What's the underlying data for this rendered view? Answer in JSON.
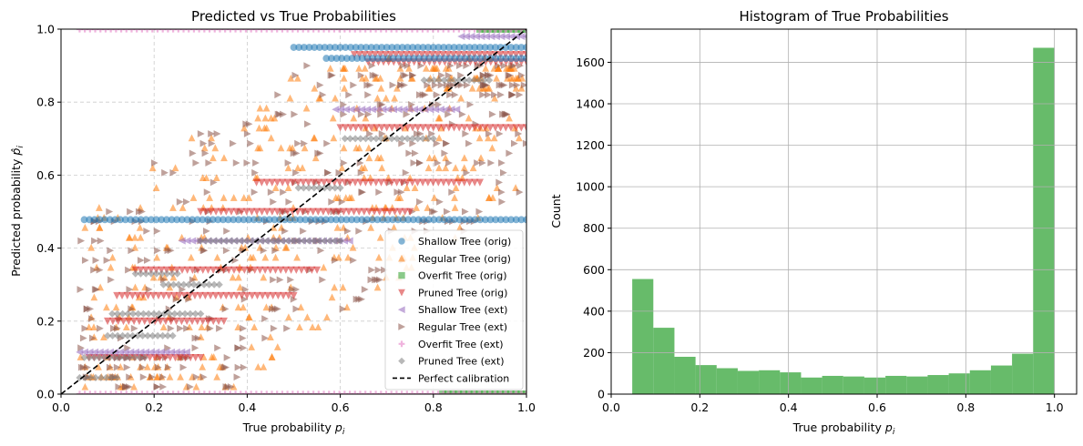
{
  "chart_data": [
    {
      "type": "scatter",
      "title": "Predicted vs True Probabilities",
      "xlabel": "True probability ",
      "xlabel_sub": "p",
      "xlabel_subscript": "i",
      "ylabel": "Predicted probability ",
      "ylabel_sym": "p̂",
      "ylabel_subscript": "i",
      "xlim": [
        0,
        1
      ],
      "ylim": [
        0,
        1
      ],
      "xticks": [
        "0.0",
        "0.2",
        "0.4",
        "0.6",
        "0.8",
        "1.0"
      ],
      "yticks": [
        "0.0",
        "0.2",
        "0.4",
        "0.6",
        "0.8",
        "1.0"
      ],
      "grid": true,
      "legend_position": "lower-right",
      "series": [
        {
          "name": "Shallow Tree (orig)",
          "marker": "circle",
          "color": "#1f77b4",
          "bands": [
            {
              "y": 0.478,
              "x0": 0.05,
              "x1": 1.0
            },
            {
              "y": 0.95,
              "x0": 0.5,
              "x1": 1.0
            },
            {
              "y": 0.92,
              "x0": 0.57,
              "x1": 1.0
            }
          ]
        },
        {
          "name": "Regular Tree (orig)",
          "marker": "triangle-up",
          "color": "#ff7f0e",
          "spread": {
            "x0": 0.04,
            "x1": 1.0,
            "ymin": 0.02,
            "ymax": 0.92
          }
        },
        {
          "name": "Overfit Tree (orig)",
          "marker": "square",
          "color": "#2ca02c",
          "bands": [
            {
              "y": 0.0,
              "x0": 0.82,
              "x1": 1.0
            },
            {
              "y": 1.0,
              "x0": 0.9,
              "x1": 1.0
            }
          ]
        },
        {
          "name": "Pruned Tree (orig)",
          "marker": "triangle-down",
          "color": "#d62728",
          "bands": [
            {
              "y": 0.93,
              "x0": 0.63,
              "x1": 1.0
            },
            {
              "y": 0.91,
              "x0": 0.66,
              "x1": 1.0
            },
            {
              "y": 0.5,
              "x0": 0.3,
              "x1": 0.75
            },
            {
              "y": 0.2,
              "x0": 0.1,
              "x1": 0.35
            },
            {
              "y": 0.27,
              "x0": 0.12,
              "x1": 0.5
            },
            {
              "y": 0.34,
              "x0": 0.16,
              "x1": 0.55
            },
            {
              "y": 0.58,
              "x0": 0.42,
              "x1": 0.9
            },
            {
              "y": 0.73,
              "x0": 0.6,
              "x1": 1.0
            },
            {
              "y": 0.1,
              "x0": 0.06,
              "x1": 0.3
            }
          ]
        },
        {
          "name": "Shallow Tree (ext)",
          "marker": "triangle-left",
          "color": "#9467bd",
          "bands": [
            {
              "y": 0.115,
              "x0": 0.04,
              "x1": 0.27
            },
            {
              "y": 0.42,
              "x0": 0.26,
              "x1": 0.62
            },
            {
              "y": 0.78,
              "x0": 0.59,
              "x1": 0.85
            },
            {
              "y": 0.98,
              "x0": 0.86,
              "x1": 1.0
            }
          ]
        },
        {
          "name": "Regular Tree (ext)",
          "marker": "triangle-right",
          "color": "#8c564b",
          "spread": {
            "x0": 0.04,
            "x1": 1.0,
            "ymin": 0.02,
            "ymax": 0.9
          }
        },
        {
          "name": "Overfit Tree (ext)",
          "marker": "plus",
          "color": "#e377c2",
          "bands": [
            {
              "y": 0.0,
              "x0": 0.04,
              "x1": 1.0
            },
            {
              "y": 1.0,
              "x0": 0.04,
              "x1": 1.0
            }
          ]
        },
        {
          "name": "Pruned Tree (ext)",
          "marker": "diamond",
          "color": "#7f7f7f",
          "bands": [
            {
              "y": 0.045,
              "x0": 0.04,
              "x1": 0.12
            },
            {
              "y": 0.1,
              "x0": 0.05,
              "x1": 0.18
            },
            {
              "y": 0.16,
              "x0": 0.1,
              "x1": 0.24
            },
            {
              "y": 0.22,
              "x0": 0.11,
              "x1": 0.3
            },
            {
              "y": 0.3,
              "x0": 0.22,
              "x1": 0.34
            },
            {
              "y": 0.33,
              "x0": 0.16,
              "x1": 0.25
            },
            {
              "y": 0.42,
              "x0": 0.3,
              "x1": 0.6
            },
            {
              "y": 0.565,
              "x0": 0.51,
              "x1": 0.6
            },
            {
              "y": 0.7,
              "x0": 0.61,
              "x1": 0.8
            },
            {
              "y": 0.86,
              "x0": 0.78,
              "x1": 0.92
            }
          ]
        },
        {
          "name": "Perfect calibration",
          "marker": "line-dashed",
          "color": "#000000",
          "x": [
            0,
            1
          ],
          "y": [
            0,
            1
          ]
        }
      ]
    },
    {
      "type": "bar",
      "subtype": "histogram",
      "title": "Histogram of True Probabilities",
      "xlabel": "True probability ",
      "xlabel_sub": "p",
      "xlabel_subscript": "i",
      "ylabel": "Count",
      "xlim": [
        0,
        1.05
      ],
      "ylim": [
        0,
        1760
      ],
      "xticks": [
        "0.0",
        "0.2",
        "0.4",
        "0.6",
        "0.8",
        "1.0"
      ],
      "yticks": [
        "0",
        "200",
        "400",
        "600",
        "800",
        "1000",
        "1200",
        "1400",
        "1600"
      ],
      "grid": true,
      "color": "#4caf50",
      "bin_start": 0.0475,
      "bin_width": 0.0476,
      "values": [
        555,
        320,
        180,
        140,
        125,
        112,
        115,
        105,
        80,
        88,
        85,
        80,
        88,
        85,
        92,
        100,
        115,
        138,
        195,
        1670
      ]
    }
  ]
}
